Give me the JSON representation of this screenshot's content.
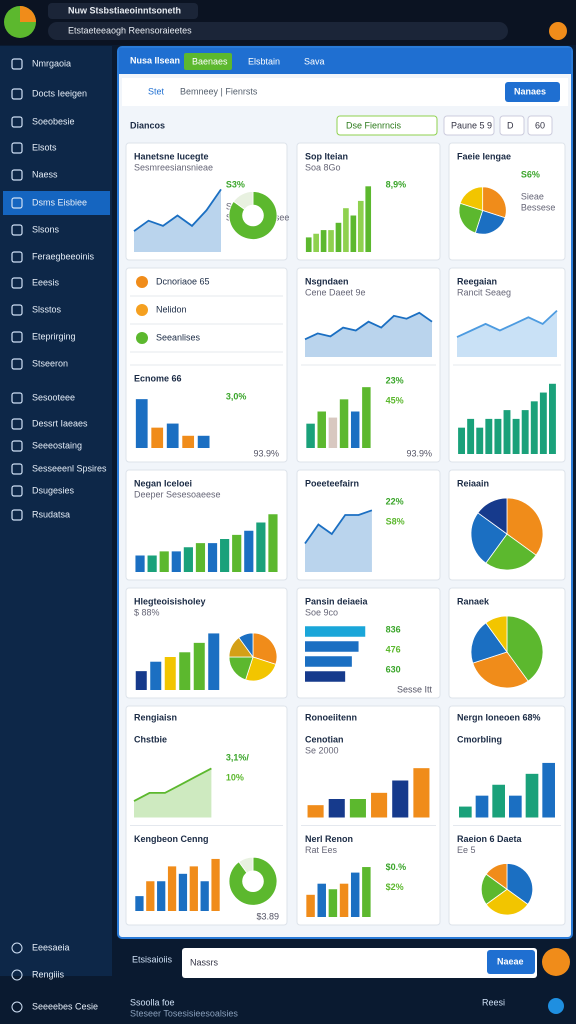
{
  "browser": {
    "tab": "Nuw Stsbstiaeoinntsoneth",
    "url": "Etstaeteeaogh Reensoraieetes"
  },
  "sidebar": {
    "items": [
      "Nmrgaoia",
      "Docts Ieeigen",
      "Soeobesie",
      "Elsots",
      "Naess",
      "Dsms Eisbiee",
      "Slsons",
      "Feraegbeeoinis",
      "Eeesis",
      "Slsstos",
      "Eteprirging",
      "Stseeron",
      "Sesooteee",
      "Dessrt Iaeaes",
      "Seeeostaing",
      "Sesseeenl Spsires",
      "Dsugesies",
      "Rsudatsa"
    ],
    "active": 5,
    "footer": [
      "Eeesaeia",
      "Rengiiis",
      "Seeeebes Cesie"
    ]
  },
  "header": {
    "brand": "Nusa Ilsean",
    "tabs": [
      "Baenaes",
      "Elsbtain",
      "Sava"
    ],
    "active_tab": 0
  },
  "toolbar": {
    "home": "Stet",
    "crumbs": "Bemneey | Fienrsts",
    "button": "Nanaes"
  },
  "section": {
    "title": "Diancos",
    "filter": "Dse Fienrncis",
    "range": "Paune 5 9",
    "options": [
      "D",
      "60"
    ]
  },
  "cards": [
    {
      "sections": [
        {
          "title": "Hanetsne Iucegte",
          "subtitle": "Sesmreesiansnieae",
          "texts": [
            "S3%"
          ],
          "notes": [
            "Seeasts",
            "Sesaee Seesee"
          ],
          "charts": [
            {
              "type": "area",
              "values": [
                2,
                3,
                2.5,
                3.5,
                2.5,
                4,
                6
              ],
              "ylim": [
                0,
                7
              ],
              "colors": [
                "#1b6fc2"
              ]
            },
            {
              "type": "donut",
              "values": [
                85,
                15
              ],
              "colors": [
                "#5cb82e",
                "#e8f1e0"
              ]
            }
          ]
        }
      ]
    },
    {
      "sections": [
        {
          "title": "Sop Iteian",
          "subtitle": "Soa 8Go",
          "texts": [
            "8,9%"
          ],
          "charts": [
            {
              "type": "bar",
              "values": [
                2,
                2.5,
                3,
                3,
                4,
                6,
                5,
                7,
                9
              ],
              "ylim": [
                0,
                10
              ],
              "colors": [
                "#5cb82e",
                "#8fd14f"
              ]
            }
          ]
        }
      ]
    },
    {
      "sections": [
        {
          "title": "Faeie Iengae",
          "texts": [
            "S6%"
          ],
          "notes": [
            "Sieae",
            "Bessese"
          ],
          "charts": [
            {
              "type": "pie",
              "values": [
                30,
                25,
                25,
                20
              ],
              "colors": [
                "#f08c1a",
                "#1b6fc2",
                "#5cb82e",
                "#f2c500"
              ]
            }
          ]
        }
      ]
    },
    {
      "sections": [
        {
          "rows": [
            "Dcnoriaoe 65",
            "Nelidon",
            "Seeanlises"
          ]
        },
        {
          "title": "Ecnome 66",
          "texts": [
            "3,0%"
          ],
          "foot": "93.9%",
          "charts": [
            {
              "type": "bar",
              "values": [
                6,
                2.5,
                3,
                1.5,
                1.5
              ],
              "ylim": [
                0,
                7
              ],
              "colors": [
                "#1b6fc2",
                "#f08c1a",
                "#1b6fc2",
                "#f08c1a",
                "#1b6fc2"
              ]
            }
          ]
        }
      ]
    },
    {
      "sections": [
        {
          "title": "Nsgndaen",
          "subtitle": "Cene Daeet 9e",
          "charts": [
            {
              "type": "area",
              "values": [
                3,
                4,
                3.5,
                5,
                4.5,
                6,
                5,
                7,
                6.5,
                7.5,
                6
              ],
              "ylim": [
                0,
                9
              ],
              "colors": [
                "#1b6fc2"
              ]
            }
          ]
        },
        {
          "texts": [
            "23%",
            "45%"
          ],
          "foot": "93.9%",
          "charts": [
            {
              "type": "bar",
              "values": [
                2,
                3,
                2.5,
                4,
                3,
                5
              ],
              "ylim": [
                0,
                6
              ],
              "colors": [
                "#1aa17a",
                "#5cb82e",
                "#d8c8c0",
                "#5cb82e",
                "#1b6fc2",
                "#5cb82e"
              ]
            }
          ]
        }
      ]
    },
    {
      "sections": [
        {
          "title": "Reegaian",
          "subtitle": "Rancit Seaeg",
          "charts": [
            {
              "type": "area",
              "values": [
                3,
                4,
                5,
                4,
                5,
                6,
                5,
                7
              ],
              "ylim": [
                0,
                8
              ],
              "colors": [
                "#4d9be0"
              ]
            }
          ]
        },
        {
          "charts": [
            {
              "type": "bar",
              "values": [
                3,
                4,
                3,
                4,
                4,
                5,
                4,
                5,
                6,
                7,
                8
              ],
              "ylim": [
                0,
                9
              ],
              "colors": [
                "#1aa17a"
              ]
            }
          ]
        }
      ]
    },
    {
      "sections": [
        {
          "title": "Negan Iceloei",
          "subtitle": "Deeper Sesesoaeese",
          "charts": [
            {
              "type": "bar",
              "values": [
                2,
                2,
                2.5,
                2.5,
                3,
                3.5,
                3.5,
                4,
                4.5,
                5,
                6,
                7
              ],
              "ylim": [
                0,
                8
              ],
              "colors": [
                "#1b6fc2",
                "#1aa17a",
                "#5cb82e"
              ]
            }
          ]
        }
      ]
    },
    {
      "sections": [
        {
          "title": "Poeeteefairn",
          "texts": [
            "22%",
            "S8%"
          ],
          "charts": [
            {
              "type": "area",
              "values": [
                3,
                5,
                4,
                6,
                6,
                6.5
              ],
              "ylim": [
                0,
                8
              ],
              "colors": [
                "#1b6fc2"
              ]
            }
          ]
        }
      ]
    },
    {
      "sections": [
        {
          "title": "Reiaain",
          "charts": [
            {
              "type": "pie",
              "values": [
                35,
                25,
                25,
                15
              ],
              "colors": [
                "#f08c1a",
                "#5cb82e",
                "#1b6fc2",
                "#163a8c"
              ]
            }
          ]
        }
      ]
    },
    {
      "sections": [
        {
          "title": "Hlegteoisisholey",
          "subtitle": "$ 88%",
          "charts": [
            {
              "type": "bar",
              "values": [
                2,
                3,
                3.5,
                4,
                5,
                6
              ],
              "ylim": [
                0,
                7
              ],
              "colors": [
                "#163a8c",
                "#1b6fc2",
                "#f2c500",
                "#5cb82e",
                "#5cb82e",
                "#1b6fc2"
              ]
            },
            {
              "type": "pie",
              "values": [
                30,
                25,
                20,
                15,
                10
              ],
              "colors": [
                "#f08c1a",
                "#f2c500",
                "#5cb82e",
                "#d4a017",
                "#1b6fc2"
              ]
            }
          ]
        }
      ]
    },
    {
      "sections": [
        {
          "title": "Pansin deiaeia",
          "subtitle": "Soe 9co",
          "texts": [
            "836",
            "476",
            "630"
          ],
          "foot": "Sesse Itt",
          "charts": [
            {
              "type": "hbar",
              "values": [
                9,
                8,
                7,
                6
              ],
              "xlim": [
                0,
                10
              ],
              "colors": [
                "#1aa6d9",
                "#1b6fc2",
                "#1b6fc2",
                "#163a8c"
              ]
            }
          ]
        }
      ]
    },
    {
      "sections": [
        {
          "title": "Ranaek",
          "charts": [
            {
              "type": "pie",
              "values": [
                40,
                30,
                20,
                10
              ],
              "colors": [
                "#5cb82e",
                "#f08c1a",
                "#1b6fc2",
                "#f2c500"
              ]
            }
          ]
        }
      ]
    },
    {
      "header": "Rengiaisn",
      "sections": [
        {
          "title": "Chstbie",
          "texts": [
            "3,1%/",
            "10%"
          ],
          "charts": [
            {
              "type": "area",
              "values": [
                1,
                1.5,
                1.5,
                2,
                2.5,
                3
              ],
              "ylim": [
                0,
                4
              ],
              "colors": [
                "#5cb82e"
              ]
            }
          ]
        },
        {
          "title": "Kengbeon Cenng",
          "foot": "$3.89",
          "charts": [
            {
              "type": "bar",
              "values": [
                1,
                2,
                2,
                3,
                2.5,
                3,
                2,
                3.5
              ],
              "ylim": [
                0,
                4
              ],
              "colors": [
                "#1b6fc2",
                "#f08c1a"
              ]
            },
            {
              "type": "donut",
              "values": [
                90,
                10
              ],
              "colors": [
                "#5cb82e",
                "#e8f1e0"
              ]
            }
          ]
        }
      ]
    },
    {
      "header": "Ronoeiitenn",
      "sections": [
        {
          "title": "Cenotian",
          "subtitle": "Se 2000",
          "charts": [
            {
              "type": "bar",
              "values": [
                1,
                1.5,
                1.5,
                2,
                3,
                4
              ],
              "ylim": [
                0,
                4.5
              ],
              "colors": [
                "#f08c1a",
                "#163a8c",
                "#5cb82e",
                "#f08c1a",
                "#163a8c"
              ]
            }
          ]
        },
        {
          "title": "Nerl Renon",
          "subtitle": "Rat Ees",
          "texts": [
            "$0.%",
            "$2%"
          ],
          "charts": [
            {
              "type": "bar",
              "values": [
                2,
                3,
                2.5,
                3,
                4,
                4.5
              ],
              "ylim": [
                0,
                5
              ],
              "colors": [
                "#f08c1a",
                "#1b6fc2",
                "#5cb82e"
              ]
            }
          ]
        }
      ]
    },
    {
      "header": "Nergn Ioneoen 68%",
      "sections": [
        {
          "title": "Cmorbling",
          "charts": [
            {
              "type": "bar",
              "values": [
                1,
                2,
                3,
                2,
                4,
                5
              ],
              "ylim": [
                0,
                6
              ],
              "colors": [
                "#1aa17a",
                "#1b6fc2"
              ]
            }
          ]
        },
        {
          "title": "Raeion 6 Daeta",
          "subtitle": "Ee 5",
          "charts": [
            {
              "type": "pie",
              "values": [
                35,
                30,
                20,
                15
              ],
              "colors": [
                "#1b6fc2",
                "#f2c500",
                "#5cb82e",
                "#f08c1a"
              ]
            }
          ]
        }
      ]
    }
  ],
  "chat": {
    "label": "Etsisaioiis",
    "placeholder": "Nassrs",
    "button": "Naeae"
  },
  "status": {
    "left": "Ssoolla foe",
    "left_sub": "Steseer Tosesisieesoalsies",
    "right": "Reesi"
  }
}
